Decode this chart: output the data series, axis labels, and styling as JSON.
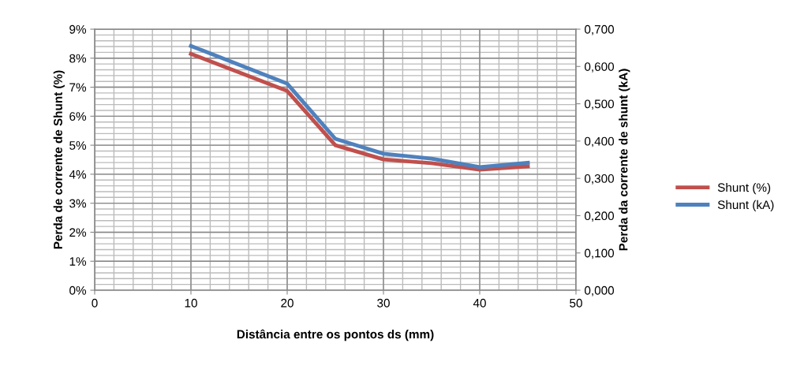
{
  "chart_data": {
    "type": "line",
    "xlabel": "Distância entre os pontos ds (mm)",
    "ylabel": "Perda de corrente de Shunt (%)",
    "y2label": "Perda da corrente de shunt (kA)",
    "series": [
      {
        "name": "Shunt (%)",
        "color": "#c0504d",
        "x": [
          10,
          20,
          25,
          30,
          35,
          40,
          45
        ],
        "values": [
          8.15,
          6.87,
          5.0,
          4.51,
          4.38,
          4.16,
          4.27
        ]
      },
      {
        "name": "Shunt (kA)",
        "color": "#4f81bd",
        "axis": "y2",
        "x": [
          10,
          20,
          25,
          30,
          35,
          40,
          45
        ],
        "values": [
          0.655,
          0.554,
          0.406,
          0.366,
          0.353,
          0.33,
          0.342
        ]
      }
    ],
    "xlim": [
      0,
      50
    ],
    "xticks": [
      0,
      10,
      20,
      30,
      40,
      50
    ],
    "ylim": [
      0,
      9
    ],
    "yticks": [
      {
        "value": 0,
        "label": "0%"
      },
      {
        "value": 1,
        "label": "1%"
      },
      {
        "value": 2,
        "label": "2%"
      },
      {
        "value": 3,
        "label": "3%"
      },
      {
        "value": 4,
        "label": "4%"
      },
      {
        "value": 5,
        "label": "5%"
      },
      {
        "value": 6,
        "label": "6%"
      },
      {
        "value": 7,
        "label": "7%"
      },
      {
        "value": 8,
        "label": "8%"
      },
      {
        "value": 9,
        "label": "9%"
      }
    ],
    "y2lim": [
      0,
      0.7
    ],
    "y2ticks": [
      {
        "value": 0,
        "label": "0,000"
      },
      {
        "value": 0.1,
        "label": "0,100"
      },
      {
        "value": 0.2,
        "label": "0,200"
      },
      {
        "value": 0.3,
        "label": "0,300"
      },
      {
        "value": 0.4,
        "label": "0,400"
      },
      {
        "value": 0.5,
        "label": "0,500"
      },
      {
        "value": 0.6,
        "label": "0,600"
      },
      {
        "value": 0.7,
        "label": "0,700"
      }
    ],
    "grid": true,
    "legend": "right",
    "marker": "none",
    "line_style": "solid"
  }
}
